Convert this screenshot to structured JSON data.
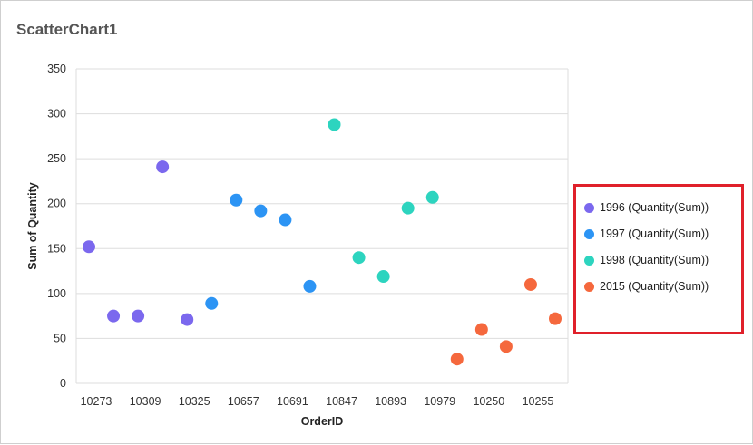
{
  "title": "ScatterChart1",
  "chart_data": {
    "type": "scatter",
    "xlabel": "OrderID",
    "ylabel": "Sum of Quantity",
    "ylim": [
      0,
      350
    ],
    "yticks": [
      0,
      50,
      100,
      150,
      200,
      250,
      300,
      350
    ],
    "categories": [
      "10273",
      "",
      "10309",
      "",
      "10325",
      "",
      "10657",
      "",
      "10691",
      "",
      "10847",
      "",
      "10893",
      "",
      "10979",
      "",
      "10250",
      "",
      "10255",
      ""
    ],
    "tick_labels": [
      "10273",
      "10309",
      "10325",
      "10657",
      "10691",
      "10847",
      "10893",
      "10979",
      "10250",
      "10255"
    ],
    "grid": true,
    "legend_position": "right",
    "series": [
      {
        "name": "1996 (Quantity(Sum))",
        "color": "#7b68ee",
        "points": [
          [
            0,
            152
          ],
          [
            1,
            75
          ],
          [
            2,
            75
          ],
          [
            3,
            241
          ],
          [
            4,
            71
          ]
        ]
      },
      {
        "name": "1997 (Quantity(Sum))",
        "color": "#2c94f4",
        "points": [
          [
            5,
            89
          ],
          [
            6,
            204
          ],
          [
            7,
            192
          ],
          [
            8,
            182
          ],
          [
            9,
            108
          ]
        ]
      },
      {
        "name": "1998 (Quantity(Sum))",
        "color": "#2dd4bf",
        "points": [
          [
            10,
            288
          ],
          [
            11,
            140
          ],
          [
            12,
            119
          ],
          [
            13,
            195
          ],
          [
            14,
            207
          ]
        ]
      },
      {
        "name": "2015 (Quantity(Sum))",
        "color": "#f5683d",
        "points": [
          [
            15,
            27
          ],
          [
            16,
            60
          ],
          [
            17,
            41
          ],
          [
            18,
            110
          ],
          [
            19,
            72
          ]
        ]
      }
    ]
  }
}
